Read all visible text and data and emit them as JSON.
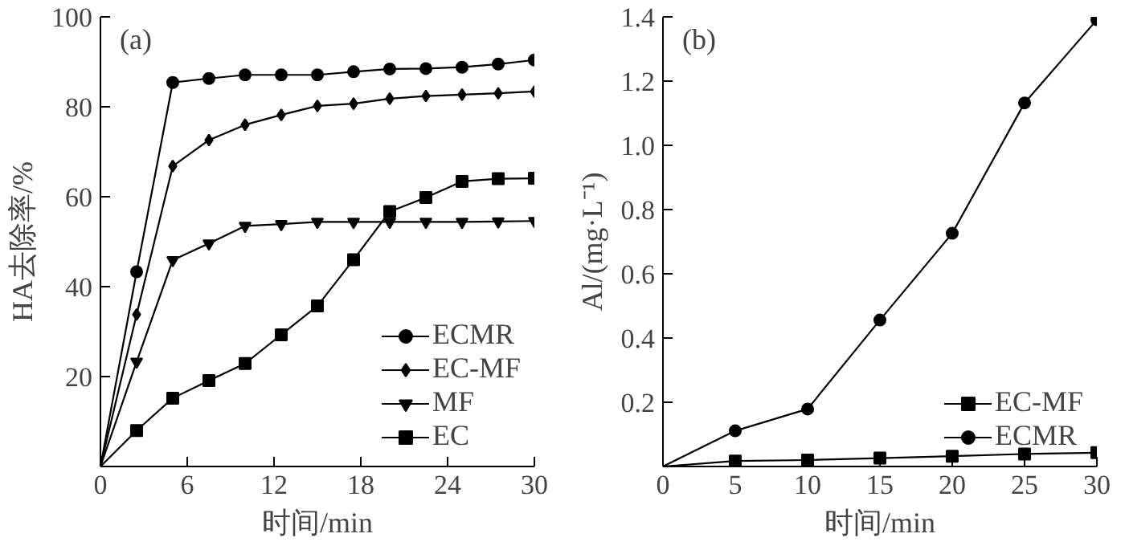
{
  "chart_data": [
    {
      "type": "line",
      "annotations": [
        "(a)"
      ],
      "xlabel": "时间/min",
      "ylabel": "HA去除率/%",
      "x": [
        0,
        2.5,
        5,
        7.5,
        10,
        12.5,
        15,
        17.5,
        20,
        22.5,
        25,
        27.5,
        30
      ],
      "series": [
        {
          "name": "ECMR",
          "color": "#000000",
          "marker": "circle",
          "values": [
            0,
            43.3,
            85.4,
            86.3,
            87.1,
            87.1,
            87.1,
            87.8,
            88.4,
            88.5,
            88.8,
            89.5,
            90.4
          ]
        },
        {
          "name": "EC-MF",
          "color": "#000000",
          "marker": "diamond",
          "values": [
            0,
            33.8,
            66.8,
            72.6,
            76,
            78.2,
            80.2,
            80.7,
            81.8,
            82.4,
            82.7,
            83,
            83.4
          ]
        },
        {
          "name": "MF",
          "color": "#000000",
          "marker": "triangle",
          "values": [
            0,
            23.3,
            45.9,
            49.6,
            53.5,
            53.9,
            54.4,
            54.4,
            54.4,
            54.4,
            54.4,
            54.5,
            54.6
          ]
        },
        {
          "name": "EC",
          "color": "#000000",
          "marker": "square",
          "values": [
            0,
            8,
            15.2,
            19.1,
            22.9,
            29.3,
            35.7,
            46,
            56.7,
            59.8,
            63.4,
            64,
            64.1
          ]
        }
      ],
      "xlim": [
        0,
        30
      ],
      "xticks": [
        0,
        6,
        12,
        18,
        24,
        30
      ],
      "ylim": [
        0,
        100
      ],
      "yticks": [
        20,
        40,
        60,
        80,
        100
      ],
      "grid": false,
      "legend": "bottom right",
      "line_style": "solid"
    },
    {
      "type": "line",
      "annotations": [
        "(b)"
      ],
      "xlabel": "时间/min",
      "ylabel": "Al/(mg·L⁻¹)",
      "x": [
        0,
        5,
        10,
        15,
        20,
        25,
        30
      ],
      "series": [
        {
          "name": "EC-MF",
          "color": "#000000",
          "marker": "square",
          "values": [
            0,
            0.017,
            0.02,
            0.026,
            0.032,
            0.039,
            0.043
          ]
        },
        {
          "name": "ECMR",
          "color": "#000000",
          "marker": "circle",
          "values": [
            0,
            0.111,
            0.179,
            0.456,
            0.726,
            1.132,
            1.391
          ]
        }
      ],
      "xlim": [
        0,
        30
      ],
      "xticks": [
        0,
        5,
        10,
        15,
        20,
        25,
        30
      ],
      "ylim": [
        0,
        1.4
      ],
      "yticks": [
        0.2,
        0.4,
        0.6,
        0.8,
        {
          "value": 1.0,
          "label": "1.0"
        },
        1.2,
        1.4
      ],
      "grid": false,
      "legend": "bottom right",
      "line_style": "solid"
    }
  ]
}
